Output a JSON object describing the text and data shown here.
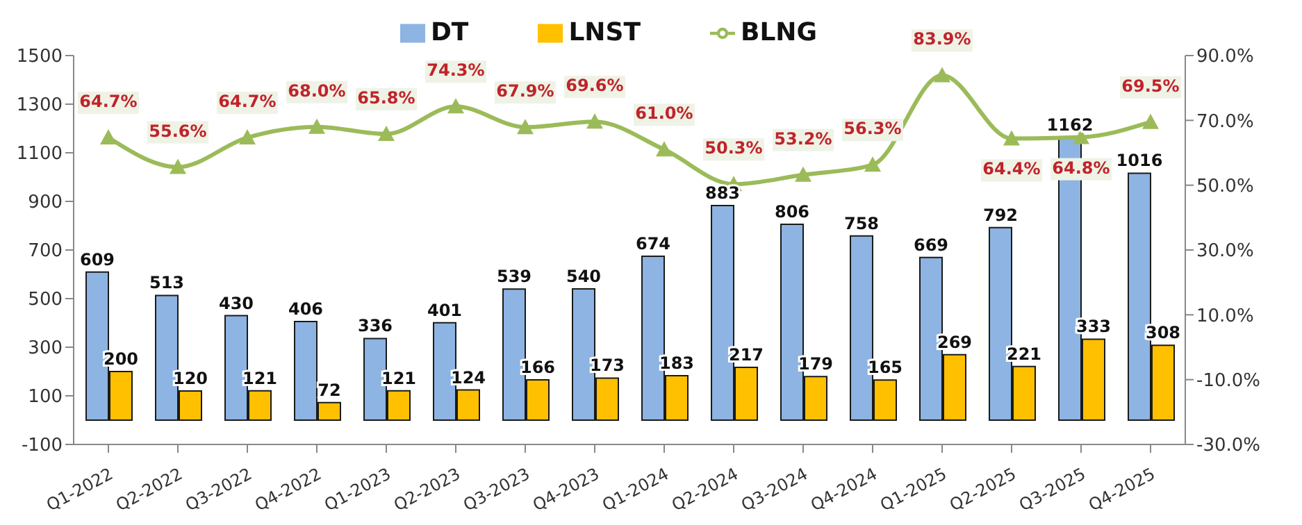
{
  "chart_data": {
    "type": "bar",
    "categories": [
      "Q1-2022",
      "Q2-2022",
      "Q3-2022",
      "Q4-2022",
      "Q1-2023",
      "Q2-2023",
      "Q3-2023",
      "Q4-2023",
      "Q1-2024",
      "Q2-2024",
      "Q3-2024",
      "Q4-2024",
      "Q1-2025",
      "Q2-2025",
      "Q3-2025",
      "Q4-2025"
    ],
    "series": [
      {
        "name": "DT",
        "color": "#8db4e2",
        "values": [
          609,
          513,
          430,
          406,
          336,
          401,
          539,
          540,
          674,
          883,
          806,
          758,
          669,
          792,
          1162,
          1016
        ]
      },
      {
        "name": "LNST",
        "color": "#ffc000",
        "values": [
          200,
          120,
          121,
          72,
          121,
          124,
          166,
          173,
          183,
          217,
          179,
          165,
          269,
          221,
          333,
          308
        ]
      },
      {
        "name": "BLNG",
        "type": "line",
        "axis": "y2",
        "color": "#9bbb59",
        "marker": "triangle",
        "values": [
          64.7,
          55.6,
          64.7,
          68.0,
          65.8,
          74.3,
          67.9,
          69.6,
          61.0,
          50.3,
          53.2,
          56.3,
          83.9,
          64.4,
          64.8,
          69.5
        ],
        "value_labels": [
          "64.7%",
          "55.6%",
          "64.7%",
          "68.0%",
          "65.8%",
          "74.3%",
          "67.9%",
          "69.6%",
          "61.0%",
          "50.3%",
          "53.2%",
          "56.3%",
          "83.9%",
          "64.4%",
          "64.8%",
          "69.5%"
        ]
      }
    ],
    "ylim": [
      -100,
      1500
    ],
    "yticks": [
      -100,
      100,
      300,
      500,
      700,
      900,
      1100,
      1300,
      1500
    ],
    "y2lim": [
      -30,
      90
    ],
    "y2ticks": [
      {
        "value": -30,
        "label": "-30.0%"
      },
      {
        "value": -10,
        "label": "-10.0%"
      },
      {
        "value": 10,
        "label": "10.0%"
      },
      {
        "value": 30,
        "label": "30.0%"
      },
      {
        "value": 50,
        "label": "50.0%"
      },
      {
        "value": 70,
        "label": "70.0%"
      },
      {
        "value": 90,
        "label": "90.0%"
      }
    ],
    "data_labels": true,
    "legend": "top",
    "grid": false
  }
}
